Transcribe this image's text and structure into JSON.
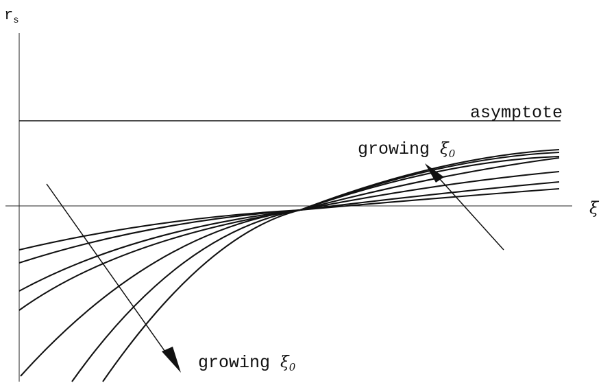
{
  "axes": {
    "y_label": "r",
    "y_label_subscript": "s",
    "x_label": "ξ"
  },
  "asymptote": {
    "label": "asymptote"
  },
  "annotations": {
    "upper": {
      "text": "growing ",
      "symbol": "ξ",
      "subscript": "0"
    },
    "lower": {
      "text": "growing ",
      "symbol": "ξ",
      "subscript": "0"
    }
  },
  "curve_family": {
    "count": 7,
    "shared_crossing": "single common point on the ξ axis"
  }
}
